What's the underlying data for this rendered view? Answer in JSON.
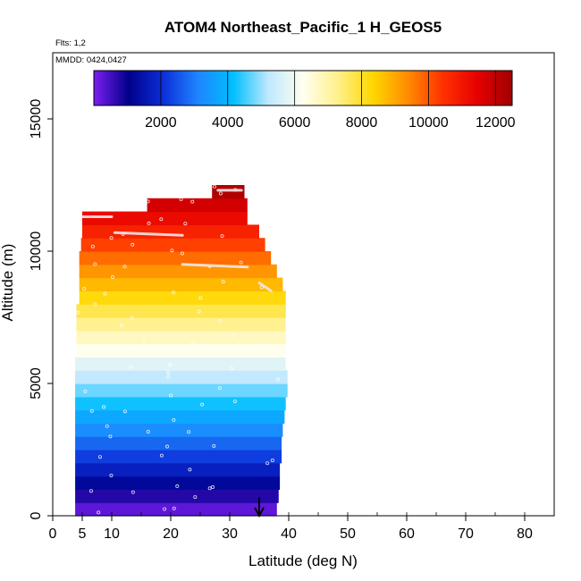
{
  "chart_data": {
    "type": "heatmap",
    "title": "ATOM4 Northeast_Pacific_1 H_GEOS5",
    "flights_note": "Flts: 1,2",
    "dates_note": "MMDD: 0424,0427",
    "xlabel": "Latitude (deg N)",
    "ylabel": "Altitude (m)",
    "xlim": [
      0,
      85
    ],
    "ylim": [
      0,
      17500
    ],
    "x_ticks": [
      0,
      5,
      10,
      20,
      30,
      40,
      50,
      60,
      70,
      80
    ],
    "y_ticks": [
      0,
      5000,
      10000,
      15000
    ],
    "colorbar": {
      "range": [
        0,
        12500
      ],
      "ticks": [
        2000,
        4000,
        6000,
        8000,
        10000,
        12000
      ],
      "stops": [
        "#7c1ef0",
        "#00008a",
        "#0c2fd9",
        "#1e86ff",
        "#00bfff",
        "#bfe8ff",
        "#fffff0",
        "#fff08c",
        "#ffd700",
        "#ff8c00",
        "#ff3200",
        "#e60000",
        "#a00000"
      ]
    },
    "curtain": {
      "layer_thickness_m": 500,
      "layers": [
        {
          "alt": 0,
          "lat_min": 3.8,
          "lat_max": 38.0
        },
        {
          "alt": 500,
          "lat_min": 3.8,
          "lat_max": 38.3
        },
        {
          "alt": 1000,
          "lat_min": 3.8,
          "lat_max": 38.5
        },
        {
          "alt": 1500,
          "lat_min": 3.8,
          "lat_max": 38.5
        },
        {
          "alt": 2000,
          "lat_min": 3.8,
          "lat_max": 38.8
        },
        {
          "alt": 2500,
          "lat_min": 3.8,
          "lat_max": 38.8
        },
        {
          "alt": 3000,
          "lat_min": 3.8,
          "lat_max": 39.0
        },
        {
          "alt": 3500,
          "lat_min": 3.8,
          "lat_max": 39.3
        },
        {
          "alt": 4000,
          "lat_min": 3.8,
          "lat_max": 39.5
        },
        {
          "alt": 4500,
          "lat_min": 3.8,
          "lat_max": 39.8
        },
        {
          "alt": 5000,
          "lat_min": 3.8,
          "lat_max": 39.8
        },
        {
          "alt": 5500,
          "lat_min": 3.8,
          "lat_max": 39.5
        },
        {
          "alt": 6000,
          "lat_min": 4.0,
          "lat_max": 39.5
        },
        {
          "alt": 6500,
          "lat_min": 4.0,
          "lat_max": 39.5
        },
        {
          "alt": 7000,
          "lat_min": 4.0,
          "lat_max": 39.5
        },
        {
          "alt": 7500,
          "lat_min": 4.0,
          "lat_max": 39.5
        },
        {
          "alt": 8000,
          "lat_min": 4.5,
          "lat_max": 39.5
        },
        {
          "alt": 8500,
          "lat_min": 4.5,
          "lat_max": 39.0
        },
        {
          "alt": 9000,
          "lat_min": 4.5,
          "lat_max": 38.0
        },
        {
          "alt": 9500,
          "lat_min": 4.5,
          "lat_max": 37.0
        },
        {
          "alt": 10000,
          "lat_min": 4.8,
          "lat_max": 36.0
        },
        {
          "alt": 10500,
          "lat_min": 5.0,
          "lat_max": 35.0
        },
        {
          "alt": 11000,
          "lat_min": 5.0,
          "lat_max": 33.0
        },
        {
          "alt": 11500,
          "lat_min": 16.0,
          "lat_max": 33.0
        },
        {
          "alt": 12000,
          "lat_min": 27.0,
          "lat_max": 32.5
        }
      ]
    },
    "flight_tracks": [
      {
        "lat": [
          5.0,
          10.0
        ],
        "alt": [
          11300,
          11300
        ]
      },
      {
        "lat": [
          10.5,
          22.0
        ],
        "alt": [
          10700,
          10600
        ]
      },
      {
        "lat": [
          22.0,
          33.0
        ],
        "alt": [
          9500,
          9400
        ]
      },
      {
        "lat": [
          28.0,
          32.0
        ],
        "alt": [
          12300,
          12300
        ]
      },
      {
        "lat": [
          35.0,
          37.0
        ],
        "alt": [
          8800,
          8500
        ]
      }
    ],
    "marker": {
      "lat": 35.0,
      "alt": 700,
      "symbol": "arrow-down"
    }
  }
}
